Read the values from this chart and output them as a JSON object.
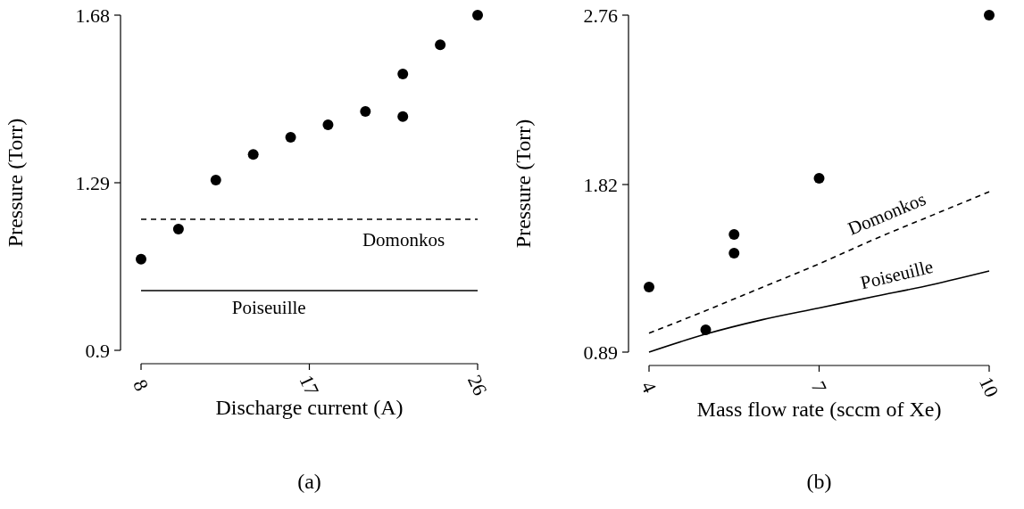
{
  "chart_data": [
    {
      "type": "scatter",
      "xlabel": "Discharge current (A)",
      "ylabel": "Pressure (Torr)",
      "annotations": [
        "(a)"
      ],
      "xlim": [
        8,
        26
      ],
      "xticks": [
        8,
        17,
        26
      ],
      "ylim": [
        0.9,
        1.68
      ],
      "yticks": [
        0.9,
        1.29,
        1.68
      ],
      "grid": false,
      "series": [
        {
          "type": "scatter",
          "marker": "circle",
          "color": "#000000",
          "x": [
            8,
            10,
            12,
            14,
            16,
            18,
            20,
            22,
            22,
            24,
            26
          ],
          "values": [
            1.112,
            1.182,
            1.296,
            1.356,
            1.396,
            1.425,
            1.456,
            1.543,
            1.444,
            1.611,
            1.68
          ]
        },
        {
          "type": "line",
          "name": "Domonkos",
          "marker": "none",
          "line_style": "dashed",
          "color": "#000000",
          "x": [
            8,
            26
          ],
          "values": [
            1.205,
            1.205
          ]
        },
        {
          "type": "line",
          "name": "Poiseuille",
          "marker": "none",
          "line_style": "solid",
          "color": "#000000",
          "x": [
            8,
            26
          ],
          "values": [
            1.039,
            1.039
          ]
        }
      ]
    },
    {
      "type": "scatter",
      "xlabel": "Mass flow rate (sccm of Xe)",
      "ylabel": "Pressure (Torr)",
      "annotations": [
        "(b)"
      ],
      "xlim": [
        4,
        10
      ],
      "xticks": [
        4,
        7,
        10
      ],
      "ylim": [
        0.89,
        2.76
      ],
      "yticks": [
        0.89,
        1.82,
        2.76
      ],
      "grid": false,
      "series": [
        {
          "type": "scatter",
          "marker": "circle",
          "color": "#000000",
          "x": [
            4,
            5,
            5.5,
            5.5,
            7,
            10
          ],
          "values": [
            1.251,
            1.014,
            1.543,
            1.439,
            1.855,
            2.76
          ]
        },
        {
          "type": "line",
          "name": "Domonkos",
          "marker": "none",
          "line_style": "dashed",
          "color": "#000000",
          "x": [
            4,
            5,
            6,
            7,
            8,
            9,
            10
          ],
          "values": [
            0.995,
            1.12,
            1.25,
            1.38,
            1.52,
            1.65,
            1.78
          ]
        },
        {
          "type": "line",
          "name": "Poiseuille",
          "marker": "none",
          "line_style": "solid",
          "color": "#000000",
          "x": [
            4,
            5,
            6,
            7,
            8,
            9,
            10
          ],
          "values": [
            0.89,
            0.99,
            1.07,
            1.135,
            1.2,
            1.265,
            1.34
          ]
        }
      ]
    }
  ]
}
